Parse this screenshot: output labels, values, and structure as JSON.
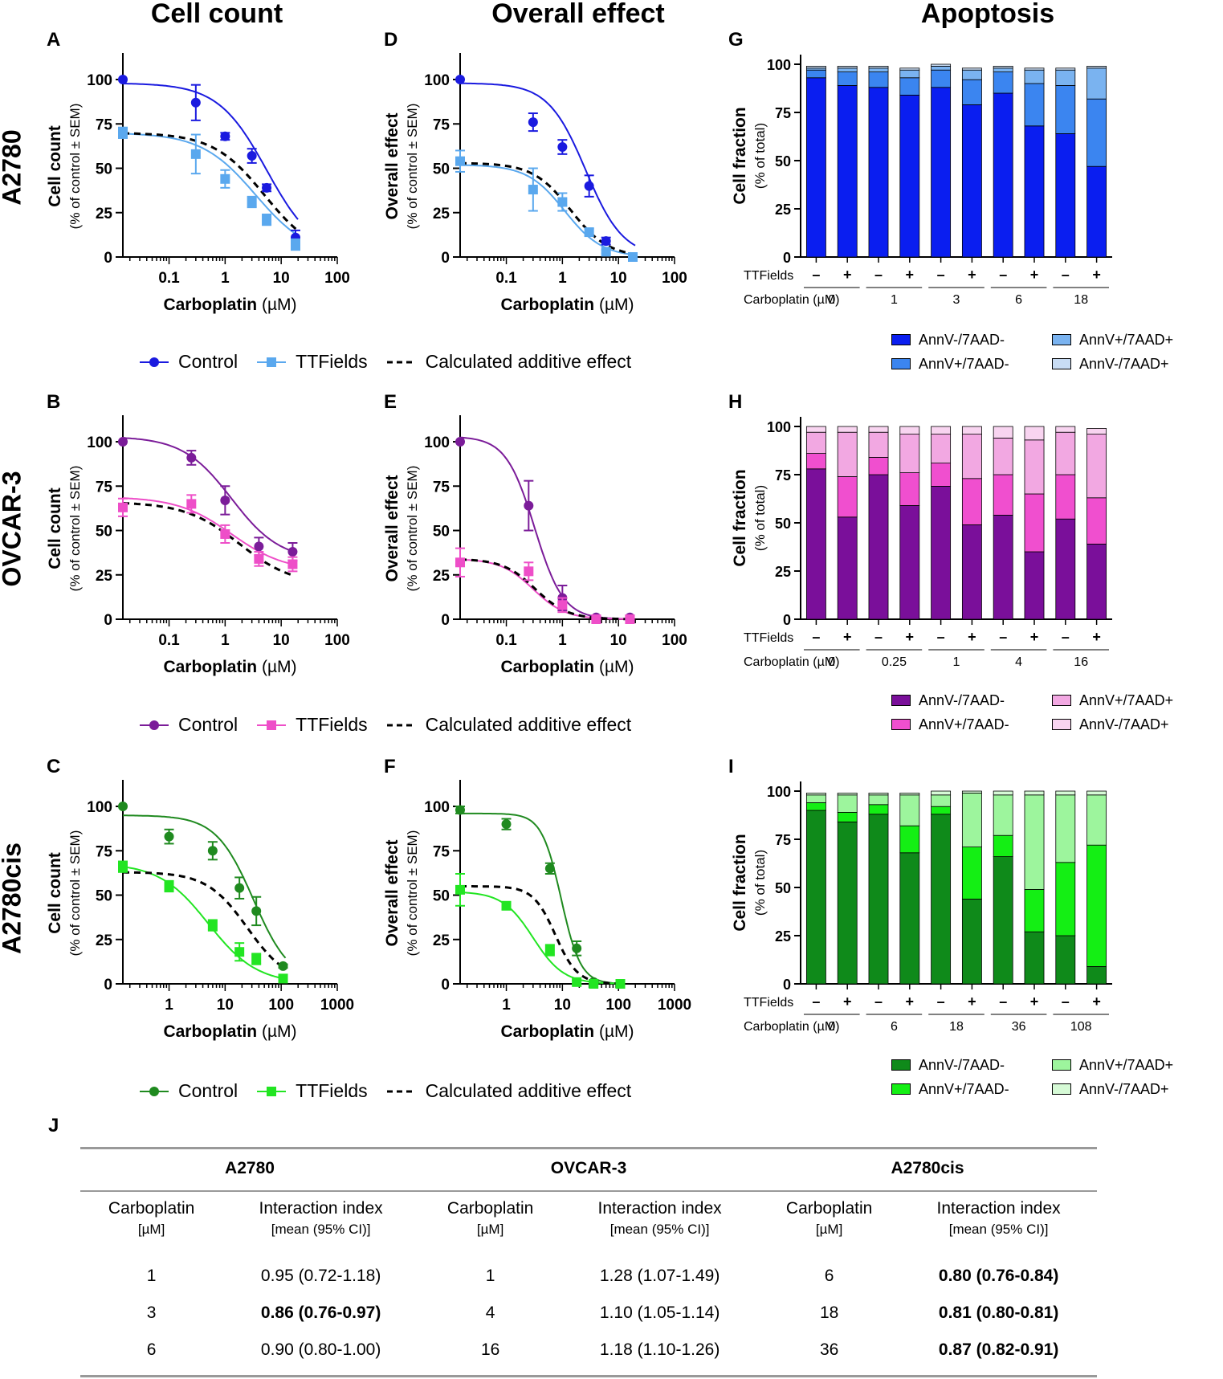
{
  "column_titles": [
    "Cell count",
    "Overall effect",
    "Apoptosis"
  ],
  "row_titles": [
    "A2780",
    "OVCAR-3",
    "A2780cis"
  ],
  "legend_labels": {
    "control": "Control",
    "ttfields": "TTFields",
    "additive": "Calculated additive effect"
  },
  "stack_legend_labels": [
    "AnnV-/7AAD-",
    "AnnV+/7AAD-",
    "AnnV+/7AAD+",
    "AnnV-/7AAD+"
  ],
  "bar_axis": {
    "ttfields_label": "TTFields",
    "carbo_label": "Carboplatin (µM)",
    "minus": "–",
    "plus": "+"
  },
  "colors": {
    "A2780": {
      "control": "#1a1adf",
      "ttf": "#5aa8ee",
      "stack": [
        "#0a1ef0",
        "#3b85f0",
        "#7ab3f0",
        "#c8dcf4"
      ]
    },
    "OVCAR-3": {
      "control": "#7b1c99",
      "ttf": "#ee4ec8",
      "stack": [
        "#7a0f9a",
        "#f04fcf",
        "#f2a8e2",
        "#f8d4f0"
      ]
    },
    "A2780cis": {
      "control": "#1f8a1f",
      "ttf": "#22e522",
      "stack": [
        "#0f8a1a",
        "#14ef14",
        "#9df59d",
        "#d6fad6"
      ]
    }
  },
  "chart_data": [
    {
      "id": "A",
      "letter": "A",
      "type": "line",
      "cell": "A2780",
      "xlabel": "Carboplatin",
      "xunit": " (µM)",
      "ylabel": "Cell count",
      "ysub": "(% of control ± SEM)",
      "ylim": [
        0,
        105
      ],
      "yticks": [
        0,
        25,
        50,
        75,
        100
      ],
      "xlim": [
        0.015,
        100
      ],
      "xticks": [
        0.1,
        1,
        10,
        100
      ],
      "xtick_labels": [
        "0.1",
        "1",
        "10",
        "100"
      ],
      "control": {
        "x": [
          0.015,
          0.3,
          1,
          3,
          5.5,
          18
        ],
        "y": [
          100,
          87,
          68,
          57,
          39,
          11
        ],
        "err": [
          0,
          10,
          2,
          4,
          2,
          4
        ]
      },
      "ttf": {
        "x": [
          0.015,
          0.3,
          1,
          3,
          5.5,
          18
        ],
        "y": [
          70,
          58,
          44,
          31,
          21,
          7
        ],
        "err": [
          3,
          11,
          5,
          3,
          3,
          3
        ]
      },
      "control_fit": {
        "top": 98,
        "bottom": 0,
        "ec50": 5.5,
        "hill": 1.0
      },
      "ttf_fit": {
        "top": 70,
        "bottom": 0,
        "ec50": 3.5,
        "hill": 0.9
      },
      "add_fit": {
        "top": 70,
        "bottom": 0,
        "ec50": 5.0,
        "hill": 0.95
      }
    },
    {
      "id": "D",
      "letter": "D",
      "type": "line",
      "cell": "A2780",
      "xlabel": "Carboplatin",
      "xunit": " (µM)",
      "ylabel": "Overall effect",
      "ysub": "(% of control ± SEM)",
      "ylim": [
        0,
        105
      ],
      "yticks": [
        0,
        25,
        50,
        75,
        100
      ],
      "xlim": [
        0.015,
        100
      ],
      "xticks": [
        0.1,
        1,
        10,
        100
      ],
      "xtick_labels": [
        "0.1",
        "1",
        "10",
        "100"
      ],
      "control": {
        "x": [
          0.015,
          0.3,
          1,
          3,
          6,
          18
        ],
        "y": [
          100,
          76,
          62,
          40,
          9,
          0
        ],
        "err": [
          0,
          5,
          4,
          6,
          2,
          1
        ]
      },
      "ttf": {
        "x": [
          0.015,
          0.3,
          1,
          3,
          6,
          18
        ],
        "y": [
          54,
          38,
          31,
          14,
          3,
          0
        ],
        "err": [
          6,
          12,
          5,
          2,
          1,
          0
        ]
      },
      "control_fit": {
        "top": 98,
        "bottom": 0,
        "ec50": 2.6,
        "hill": 1.3
      },
      "ttf_fit": {
        "top": 52,
        "bottom": 0,
        "ec50": 1.1,
        "hill": 1.3
      },
      "add_fit": {
        "top": 53,
        "bottom": 0,
        "ec50": 1.4,
        "hill": 1.3
      }
    },
    {
      "id": "B",
      "letter": "B",
      "type": "line",
      "cell": "OVCAR-3",
      "xlabel": "Carboplatin",
      "xunit": " (µM)",
      "ylabel": "Cell count",
      "ysub": "(% of control ± SEM)",
      "ylim": [
        0,
        105
      ],
      "yticks": [
        0,
        25,
        50,
        75,
        100
      ],
      "xlim": [
        0.015,
        100
      ],
      "xticks": [
        0.1,
        1,
        10,
        100
      ],
      "xtick_labels": [
        "0.1",
        "1",
        "10",
        "100"
      ],
      "control": {
        "x": [
          0.015,
          0.25,
          1,
          4,
          16
        ],
        "y": [
          100,
          91,
          67,
          41,
          38
        ],
        "err": [
          0,
          4,
          8,
          5,
          5
        ]
      },
      "ttf": {
        "x": [
          0.015,
          0.25,
          1,
          4,
          16
        ],
        "y": [
          63,
          65,
          48,
          34,
          31
        ],
        "err": [
          5,
          5,
          5,
          4,
          4
        ]
      },
      "control_fit": {
        "top": 103,
        "bottom": 33,
        "ec50": 1.3,
        "hill": 1.0
      },
      "ttf_fit": {
        "top": 69,
        "bottom": 27,
        "ec50": 1.3,
        "hill": 0.9
      },
      "add_fit": {
        "top": 66,
        "bottom": 19,
        "ec50": 1.8,
        "hill": 0.9
      }
    },
    {
      "id": "E",
      "letter": "E",
      "type": "line",
      "cell": "OVCAR-3",
      "xlabel": "Carboplatin",
      "xunit": " (µM)",
      "ylabel": "Overall effect",
      "ysub": "(% of control ± SEM)",
      "ylim": [
        0,
        105
      ],
      "yticks": [
        0,
        25,
        50,
        75,
        100
      ],
      "xlim": [
        0.015,
        100
      ],
      "xticks": [
        0.1,
        1,
        10,
        100
      ],
      "xtick_labels": [
        "0.1",
        "1",
        "10",
        "100"
      ],
      "control": {
        "x": [
          0.015,
          0.25,
          1,
          4,
          16
        ],
        "y": [
          100,
          64,
          12,
          1,
          1
        ],
        "err": [
          0,
          14,
          7,
          1,
          1
        ]
      },
      "ttf": {
        "x": [
          0.015,
          0.25,
          1,
          4,
          16
        ],
        "y": [
          32,
          27,
          8,
          0,
          0
        ],
        "err": [
          8,
          5,
          4,
          1,
          1
        ]
      },
      "control_fit": {
        "top": 103,
        "bottom": 0,
        "ec50": 0.32,
        "hill": 1.7
      },
      "ttf_fit": {
        "top": 34,
        "bottom": 0,
        "ec50": 0.3,
        "hill": 1.5
      },
      "add_fit": {
        "top": 34,
        "bottom": 0,
        "ec50": 0.33,
        "hill": 1.5
      }
    },
    {
      "id": "C",
      "letter": "C",
      "type": "line",
      "cell": "A2780cis",
      "xlabel": "Carboplatin",
      "xunit": " (µM)",
      "ylabel": "Cell count",
      "ysub": "(% of control ± SEM)",
      "ylim": [
        0,
        105
      ],
      "yticks": [
        0,
        25,
        50,
        75,
        100
      ],
      "xlim": [
        0.15,
        1000
      ],
      "xticks": [
        1,
        10,
        100,
        1000
      ],
      "xtick_labels": [
        "1",
        "10",
        "100",
        "1000"
      ],
      "control": {
        "x": [
          0.15,
          1,
          6,
          18,
          36,
          108
        ],
        "y": [
          100,
          83,
          75,
          54,
          41,
          10
        ],
        "err": [
          0,
          4,
          5,
          6,
          8,
          1
        ]
      },
      "ttf": {
        "x": [
          0.15,
          1,
          6,
          18,
          36,
          108
        ],
        "y": [
          66,
          55,
          33,
          18,
          14,
          3
        ],
        "err": [
          3,
          3,
          3,
          5,
          3,
          1
        ]
      },
      "control_fit": {
        "top": 95,
        "bottom": 0,
        "ec50": 32,
        "hill": 1.3
      },
      "ttf_fit": {
        "top": 68,
        "bottom": 0,
        "ec50": 5.0,
        "hill": 1.0
      },
      "add_fit": {
        "top": 63,
        "bottom": 0,
        "ec50": 25,
        "hill": 1.2
      }
    },
    {
      "id": "F",
      "letter": "F",
      "type": "line",
      "cell": "A2780cis",
      "xlabel": "Carboplatin",
      "xunit": " (µM)",
      "ylabel": "Overall effect",
      "ysub": "(% of control ± SEM)",
      "ylim": [
        0,
        105
      ],
      "yticks": [
        0,
        25,
        50,
        75,
        100
      ],
      "xlim": [
        0.15,
        1000
      ],
      "xticks": [
        1,
        10,
        100,
        1000
      ],
      "xtick_labels": [
        "1",
        "10",
        "100",
        "1000"
      ],
      "control": {
        "x": [
          0.15,
          1,
          6,
          18,
          36,
          108
        ],
        "y": [
          98,
          90,
          65,
          20,
          1,
          0
        ],
        "err": [
          2,
          3,
          3,
          4,
          1,
          1
        ]
      },
      "ttf": {
        "x": [
          0.15,
          1,
          6,
          18,
          36,
          108
        ],
        "y": [
          53,
          44,
          19,
          1,
          0,
          0
        ],
        "err": [
          9,
          2,
          3,
          1,
          1,
          1
        ]
      },
      "control_fit": {
        "top": 96,
        "bottom": 0,
        "ec50": 9.5,
        "hill": 2.5
      },
      "ttf_fit": {
        "top": 52,
        "bottom": 0,
        "ec50": 3.0,
        "hill": 1.6
      },
      "add_fit": {
        "top": 55,
        "bottom": 0,
        "ec50": 7.5,
        "hill": 2.2
      }
    },
    {
      "id": "G",
      "letter": "G",
      "type": "bar",
      "stacked": true,
      "cell": "A2780",
      "ylabel": "Cell fraction",
      "ysub": "(% of total)",
      "ylim": [
        0,
        105
      ],
      "yticks": [
        0,
        25,
        50,
        75,
        100
      ],
      "doses": [
        "0",
        "1",
        "3",
        "6",
        "18"
      ],
      "bars": [
        [
          93,
          4,
          1,
          1
        ],
        [
          89,
          7,
          2,
          1
        ],
        [
          88,
          8,
          2,
          1
        ],
        [
          84,
          9,
          4,
          1
        ],
        [
          88,
          9,
          2,
          1
        ],
        [
          79,
          13,
          5,
          1
        ],
        [
          85,
          11,
          2,
          1
        ],
        [
          68,
          22,
          7,
          1
        ],
        [
          64,
          25,
          8,
          1
        ],
        [
          47,
          35,
          16,
          1
        ]
      ]
    },
    {
      "id": "H",
      "letter": "H",
      "type": "bar",
      "stacked": true,
      "cell": "OVCAR-3",
      "ylabel": "Cell fraction",
      "ysub": "(% of total)",
      "ylim": [
        0,
        105
      ],
      "yticks": [
        0,
        25,
        50,
        75,
        100
      ],
      "doses": [
        "0",
        "0.25",
        "1",
        "4",
        "16"
      ],
      "bars": [
        [
          78,
          8,
          11,
          3
        ],
        [
          53,
          21,
          23,
          3
        ],
        [
          75,
          9,
          13,
          3
        ],
        [
          59,
          17,
          20,
          4
        ],
        [
          69,
          12,
          15,
          4
        ],
        [
          49,
          24,
          23,
          4
        ],
        [
          54,
          21,
          19,
          6
        ],
        [
          35,
          30,
          28,
          7
        ],
        [
          52,
          23,
          22,
          3
        ],
        [
          39,
          24,
          33,
          3
        ]
      ]
    },
    {
      "id": "I",
      "letter": "I",
      "type": "bar",
      "stacked": true,
      "cell": "A2780cis",
      "ylabel": "Cell fraction",
      "ysub": "(% of total)",
      "ylim": [
        0,
        105
      ],
      "yticks": [
        0,
        25,
        50,
        75,
        100
      ],
      "doses": [
        "0",
        "6",
        "18",
        "36",
        "108"
      ],
      "bars": [
        [
          90,
          4,
          4,
          1
        ],
        [
          84,
          5,
          9,
          1
        ],
        [
          88,
          5,
          5,
          1
        ],
        [
          68,
          14,
          16,
          1
        ],
        [
          88,
          4,
          6,
          2
        ],
        [
          44,
          27,
          28,
          1
        ],
        [
          66,
          11,
          21,
          2
        ],
        [
          27,
          22,
          49,
          2
        ],
        [
          25,
          38,
          35,
          2
        ],
        [
          9,
          63,
          26,
          2
        ]
      ]
    }
  ],
  "table": {
    "letter": "J",
    "groups": [
      "A2780",
      "OVCAR-3",
      "A2780cis"
    ],
    "sub_headers": [
      "Carboplatin",
      "[µM]",
      "Interaction index",
      "[mean (95% CI)]"
    ],
    "rows": [
      {
        "c1": "1",
        "i1": "0.95 (0.72-1.18)",
        "b1": false,
        "c2": "1",
        "i2": "1.28 (1.07-1.49)",
        "b2": false,
        "c3": "6",
        "i3": "0.80 (0.76-0.84)",
        "b3": true
      },
      {
        "c1": "3",
        "i1": "0.86 (0.76-0.97)",
        "b1": true,
        "c2": "4",
        "i2": "1.10 (1.05-1.14)",
        "b2": false,
        "c3": "18",
        "i3": "0.81 (0.80-0.81)",
        "b3": true
      },
      {
        "c1": "6",
        "i1": "0.90 (0.80-1.00)",
        "b1": false,
        "c2": "16",
        "i2": "1.18 (1.10-1.26)",
        "b2": false,
        "c3": "36",
        "i3": "0.87 (0.82-0.91)",
        "b3": true
      }
    ]
  }
}
